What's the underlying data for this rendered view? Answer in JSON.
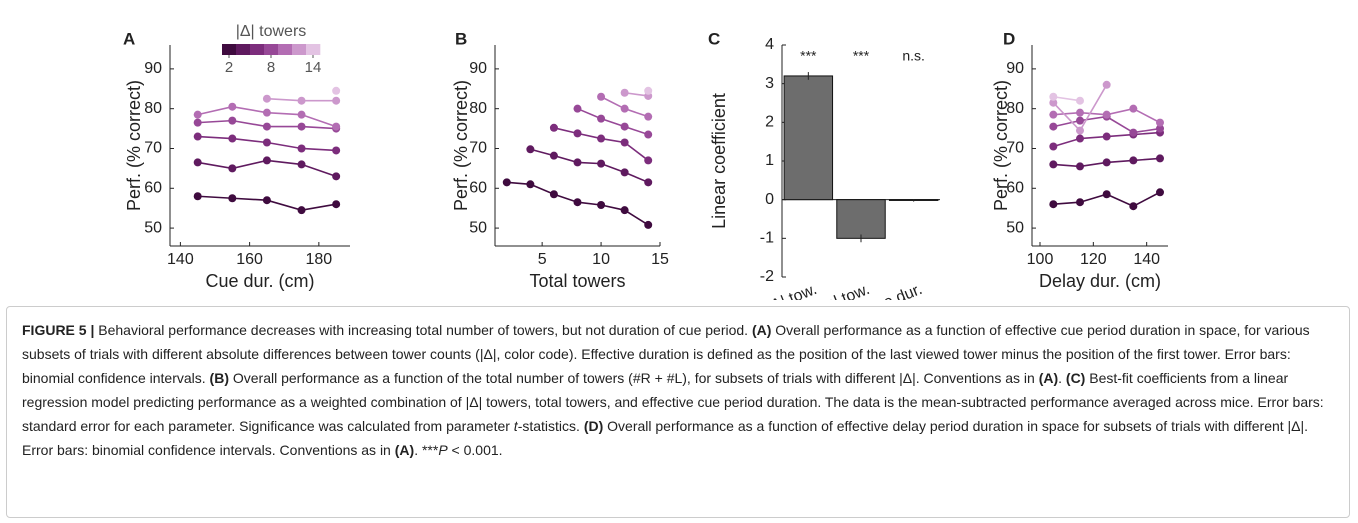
{
  "chart_data": [
    {
      "type": "line",
      "panel": "A",
      "xlabel": "Cue dur. (cm)",
      "ylabel": "Perf. (% correct)",
      "x": [
        145,
        155,
        165,
        175,
        185
      ],
      "xlim": [
        137,
        189
      ],
      "xticks": [
        140,
        160,
        180
      ],
      "ylim": [
        45.5,
        96
      ],
      "yticks": [
        50,
        60,
        70,
        80,
        90
      ],
      "colorbar": {
        "title": "|Δ| towers",
        "ticks": [
          2,
          8,
          14
        ],
        "clim": [
          1,
          15
        ]
      },
      "series": [
        {
          "color": "#3f0b3f",
          "values": [
            58,
            57.5,
            57,
            54.5,
            56
          ]
        },
        {
          "color": "#5f1a5f",
          "values": [
            66.5,
            65,
            67,
            66,
            63
          ]
        },
        {
          "color": "#7c2d7c",
          "values": [
            73,
            72.5,
            71.5,
            70,
            69.5
          ]
        },
        {
          "color": "#974897",
          "values": [
            76.5,
            77,
            75.5,
            75.5,
            75
          ]
        },
        {
          "color": "#b36db3",
          "values": [
            78.5,
            80.5,
            79,
            78.5,
            75.5
          ]
        },
        {
          "color": "#cc98cc",
          "values": [
            null,
            null,
            82.5,
            82,
            82
          ]
        },
        {
          "color": "#e3c3e3",
          "values": [
            null,
            null,
            null,
            null,
            84.5
          ]
        }
      ]
    },
    {
      "type": "line",
      "panel": "B",
      "xlabel": "Total towers",
      "ylabel": "Perf. (% correct)",
      "x": [
        2,
        4,
        6,
        8,
        10,
        12,
        14
      ],
      "xlim": [
        1,
        15
      ],
      "xticks": [
        5,
        10,
        15
      ],
      "ylim": [
        45.5,
        96
      ],
      "yticks": [
        50,
        60,
        70,
        80,
        90
      ],
      "series": [
        {
          "color": "#3f0b3f",
          "values": [
            61.5,
            61,
            58.5,
            56.5,
            55.8,
            54.5,
            50.8
          ]
        },
        {
          "color": "#5f1a5f",
          "values": [
            null,
            69.8,
            68.2,
            66.5,
            66.2,
            64,
            61.5
          ]
        },
        {
          "color": "#7c2d7c",
          "values": [
            null,
            null,
            75.2,
            73.8,
            72.5,
            71.5,
            67
          ]
        },
        {
          "color": "#974897",
          "values": [
            null,
            null,
            null,
            80,
            77.5,
            75.5,
            73.5
          ]
        },
        {
          "color": "#b36db3",
          "values": [
            null,
            null,
            null,
            null,
            83,
            80,
            78
          ]
        },
        {
          "color": "#cc98cc",
          "values": [
            null,
            null,
            null,
            null,
            null,
            84,
            83.2
          ]
        },
        {
          "color": "#e3c3e3",
          "values": [
            null,
            null,
            null,
            null,
            null,
            null,
            84.5
          ]
        }
      ]
    },
    {
      "type": "bar",
      "panel": "C",
      "ylabel": "Linear coefficient",
      "categories": [
        "|Δ| tow.",
        "Total tow.",
        "Cue dur."
      ],
      "values": [
        3.2,
        -1.0,
        -0.02
      ],
      "errors": [
        0.1,
        0.1,
        0.03
      ],
      "annotations": [
        "***",
        "***",
        "n.s."
      ],
      "color": "#6d6d6d",
      "ylim": [
        -2,
        4
      ],
      "yticks": [
        -2,
        -1,
        0,
        1,
        2,
        3,
        4
      ]
    },
    {
      "type": "line",
      "panel": "D",
      "xlabel": "Delay dur. (cm)",
      "ylabel": "Perf. (% correct)",
      "x": [
        105,
        115,
        125,
        135,
        145
      ],
      "xlim": [
        97,
        148
      ],
      "xticks": [
        100,
        120,
        140
      ],
      "ylim": [
        45.5,
        96
      ],
      "yticks": [
        50,
        60,
        70,
        80,
        90
      ],
      "series": [
        {
          "color": "#3f0b3f",
          "values": [
            56,
            56.5,
            58.5,
            55.5,
            59
          ]
        },
        {
          "color": "#5f1a5f",
          "values": [
            66,
            65.5,
            66.5,
            67,
            67.5
          ]
        },
        {
          "color": "#7c2d7c",
          "values": [
            70.5,
            72.5,
            73,
            73.5,
            74
          ]
        },
        {
          "color": "#974897",
          "values": [
            75.5,
            77,
            78,
            74,
            75
          ]
        },
        {
          "color": "#b36db3",
          "values": [
            78.5,
            79,
            78.5,
            80,
            76.5
          ]
        },
        {
          "color": "#cc98cc",
          "values": [
            81.5,
            74.5,
            86,
            null,
            null
          ]
        },
        {
          "color": "#e3c3e3",
          "values": [
            83,
            82,
            null,
            null,
            null
          ]
        }
      ]
    }
  ],
  "caption": [
    {
      "text": "FIGURE 5 | ",
      "style": "bold"
    },
    {
      "text": "Behavioral performance decreases with increasing total number of towers, but not duration of cue period. "
    },
    {
      "text": "(A)",
      "style": "bold"
    },
    {
      "text": " Overall performance as a function of effective cue period duration in space, for various subsets of trials with different absolute differences between tower counts (|Δ|, color code). Effective duration is defined as the position of the last viewed tower minus the position of the first tower. Error bars: binomial confidence intervals. "
    },
    {
      "text": "(B)",
      "style": "bold"
    },
    {
      "text": " Overall performance as a function of the total number of towers (#R + #L), for subsets of trials with different |Δ|. Conventions as in "
    },
    {
      "text": "(A)",
      "style": "bold"
    },
    {
      "text": ". "
    },
    {
      "text": "(C)",
      "style": "bold"
    },
    {
      "text": " Best-fit coefficients from a linear regression model predicting performance as a weighted combination of |Δ| towers, total towers, and effective cue period duration. The data is the mean-subtracted performance averaged across mice. Error bars: standard error for each parameter. Significance was calculated from parameter "
    },
    {
      "text": "t",
      "style": "italic"
    },
    {
      "text": "-statistics. "
    },
    {
      "text": "(D)",
      "style": "bold"
    },
    {
      "text": " Overall performance as a function of effective delay period duration in space for subsets of trials with different |Δ|. Error bars: binomial confidence intervals. Conventions as in "
    },
    {
      "text": "(A)",
      "style": "bold"
    },
    {
      "text": ". ***"
    },
    {
      "text": "P",
      "style": "italic"
    },
    {
      "text": " < 0.001."
    }
  ]
}
